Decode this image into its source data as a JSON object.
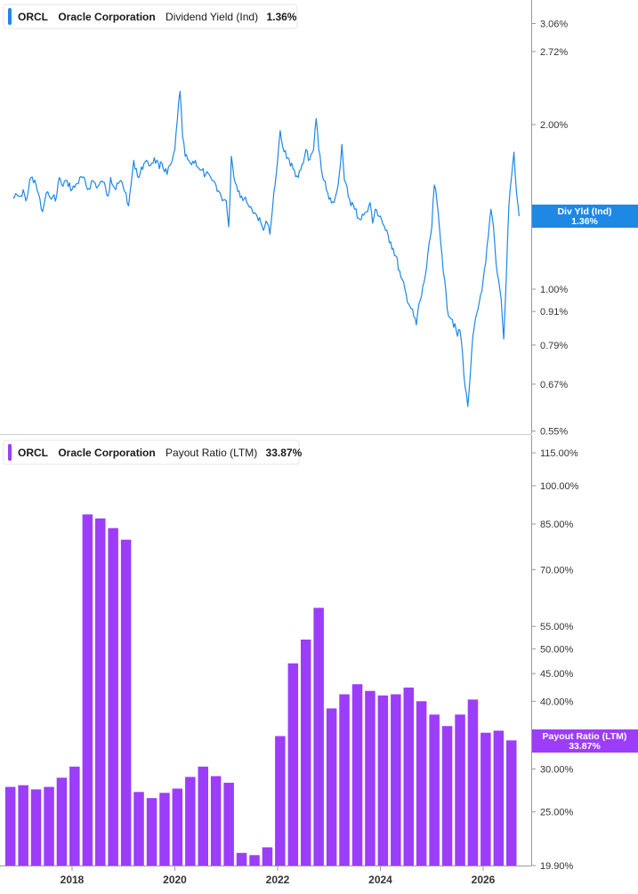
{
  "top_legend": {
    "ticker": "ORCL",
    "company": "Oracle Corporation",
    "metric": "Dividend Yield (Ind)",
    "value": "1.36%"
  },
  "bottom_legend": {
    "ticker": "ORCL",
    "company": "Oracle Corporation",
    "metric": "Payout Ratio (LTM)",
    "value": "33.87%"
  },
  "top_tag": {
    "line1": "Div Yld (Ind)",
    "line2": "1.36%"
  },
  "bottom_tag": {
    "line1": "Payout Ratio (LTM)",
    "line2": "33.87%"
  },
  "colors": {
    "line": "#1e88e5",
    "bar": "#9c3dfa",
    "axis": "#999999",
    "divider": "#cccccc"
  },
  "chart_data": [
    {
      "type": "line",
      "scale": "log",
      "series": [
        {
          "name": "Dividend Yield (Ind)",
          "x": [
            2016.85,
            2017.0,
            2017.05,
            2017.1,
            2017.2,
            2017.3,
            2017.4,
            2017.45,
            2017.5,
            2017.6,
            2017.7,
            2017.75,
            2017.8,
            2017.9,
            2018.0,
            2018.1,
            2018.2,
            2018.3,
            2018.4,
            2018.5,
            2018.6,
            2018.7,
            2018.75,
            2018.85,
            2018.95,
            2019.05,
            2019.1,
            2019.2,
            2019.3,
            2019.4,
            2019.5,
            2019.6,
            2019.7,
            2019.75,
            2019.85,
            2019.95,
            2020.0,
            2020.05,
            2020.1,
            2020.15,
            2020.2,
            2020.3,
            2020.4,
            2020.5,
            2020.6,
            2020.7,
            2020.8,
            2020.9,
            2021.0,
            2021.05,
            2021.1,
            2021.15,
            2021.2,
            2021.3,
            2021.4,
            2021.5,
            2021.6,
            2021.7,
            2021.8,
            2021.85,
            2021.9,
            2021.95,
            2022.0,
            2022.05,
            2022.1,
            2022.2,
            2022.3,
            2022.4,
            2022.5,
            2022.55,
            2022.6,
            2022.7,
            2022.75,
            2022.8,
            2022.85,
            2022.9,
            2023.0,
            2023.1,
            2023.2,
            2023.25,
            2023.3,
            2023.4,
            2023.5,
            2023.6,
            2023.7,
            2023.8,
            2023.85,
            2023.9,
            2024.0,
            2024.1,
            2024.2,
            2024.3,
            2024.4,
            2024.5,
            2024.6,
            2024.7,
            2024.75,
            2024.8,
            2024.9,
            2025.0,
            2025.05,
            2025.1,
            2025.2,
            2025.3,
            2025.4,
            2025.5,
            2025.55,
            2025.6,
            2025.65,
            2025.7,
            2025.75,
            2025.8,
            2025.9,
            2026.0,
            2026.05,
            2026.1,
            2026.15,
            2026.2,
            2026.25,
            2026.3,
            2026.35,
            2026.4,
            2026.45,
            2026.5,
            2026.55,
            2026.6,
            2026.65,
            2026.7
          ],
          "y": [
            1.47,
            1.48,
            1.52,
            1.45,
            1.6,
            1.55,
            1.4,
            1.42,
            1.5,
            1.46,
            1.48,
            1.6,
            1.55,
            1.58,
            1.52,
            1.56,
            1.6,
            1.52,
            1.58,
            1.54,
            1.57,
            1.48,
            1.6,
            1.52,
            1.58,
            1.5,
            1.42,
            1.72,
            1.6,
            1.7,
            1.68,
            1.74,
            1.66,
            1.7,
            1.62,
            1.72,
            1.8,
            2.05,
            2.3,
            1.9,
            1.75,
            1.7,
            1.72,
            1.65,
            1.62,
            1.6,
            1.55,
            1.48,
            1.45,
            1.3,
            1.75,
            1.6,
            1.55,
            1.48,
            1.44,
            1.4,
            1.36,
            1.3,
            1.32,
            1.26,
            1.4,
            1.55,
            1.72,
            1.95,
            1.82,
            1.74,
            1.66,
            1.6,
            1.7,
            1.8,
            1.72,
            1.8,
            2.05,
            1.8,
            1.66,
            1.58,
            1.46,
            1.44,
            1.62,
            1.84,
            1.58,
            1.46,
            1.4,
            1.34,
            1.38,
            1.44,
            1.32,
            1.4,
            1.36,
            1.28,
            1.22,
            1.15,
            1.05,
            0.98,
            0.92,
            0.86,
            0.94,
            0.97,
            1.1,
            1.3,
            1.55,
            1.45,
            1.15,
            0.92,
            0.88,
            0.82,
            0.84,
            0.76,
            0.66,
            0.61,
            0.7,
            0.82,
            0.92,
            1.04,
            1.12,
            1.25,
            1.4,
            1.3,
            1.12,
            1.04,
            0.96,
            0.81,
            1.05,
            1.42,
            1.6,
            1.78,
            1.5,
            1.36
          ]
        }
      ],
      "yticks": [
        "3.06%",
        "2.72%",
        "2.00%",
        "1.00%",
        "0.91%",
        "0.79%",
        "0.67%",
        "0.55%"
      ],
      "ylim": [
        0.55,
        3.3
      ]
    },
    {
      "type": "bar",
      "scale": "log",
      "series": [
        {
          "name": "Payout Ratio (LTM)",
          "x": [
            2016.8,
            2017.05,
            2017.3,
            2017.55,
            2017.8,
            2018.05,
            2018.3,
            2018.55,
            2018.8,
            2019.05,
            2019.3,
            2019.55,
            2019.8,
            2020.05,
            2020.3,
            2020.55,
            2020.8,
            2021.05,
            2021.3,
            2021.55,
            2021.8,
            2022.05,
            2022.3,
            2022.55,
            2022.8,
            2023.05,
            2023.3,
            2023.55,
            2023.8,
            2024.05,
            2024.3,
            2024.55,
            2024.8,
            2025.05,
            2025.3,
            2025.55,
            2025.8,
            2026.05,
            2026.3,
            2026.55
          ],
          "values": [
            27.8,
            28.0,
            27.5,
            27.8,
            28.9,
            30.3,
            88.5,
            87.0,
            83.5,
            79.5,
            27.2,
            26.5,
            27.1,
            27.6,
            29.0,
            30.3,
            29.1,
            28.3,
            21.0,
            20.8,
            21.5,
            34.5,
            47.0,
            52.0,
            59.5,
            38.8,
            41.2,
            43.0,
            41.8,
            41.0,
            41.2,
            42.4,
            40.0,
            37.8,
            36.0,
            37.8,
            40.3,
            35.0,
            35.3,
            33.87
          ]
        }
      ],
      "yticks": [
        "115.00%",
        "100.00%",
        "85.00%",
        "70.00%",
        "55.00%",
        "50.00%",
        "45.00%",
        "40.00%",
        "30.00%",
        "25.00%",
        "19.90%"
      ],
      "ylim": [
        19.9,
        118
      ]
    }
  ],
  "x_axis": {
    "ticks": [
      "2018",
      "2020",
      "2022",
      "2024",
      "2026"
    ],
    "range": [
      2016.6,
      2026.9
    ]
  }
}
